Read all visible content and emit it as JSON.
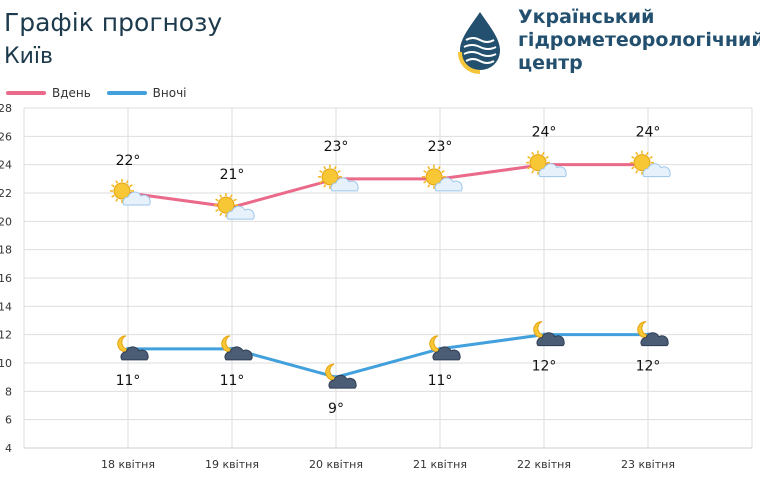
{
  "header": {
    "title": "Графік прогнозу",
    "city": "Київ"
  },
  "org": {
    "line1": "Український",
    "line2": "гідрометеорологічний",
    "line3": "центр"
  },
  "colors": {
    "day": "#ea6a8a",
    "night": "#42a0dc",
    "grid": "#dedede",
    "brand": "#23506e",
    "logo_yellow": "#f5c53a"
  },
  "chart_data": {
    "type": "line",
    "categories": [
      "18 квітня",
      "19 квітня",
      "20 квітня",
      "21 квітня",
      "22 квітня",
      "23 квітня"
    ],
    "series": [
      {
        "name": "Вдень",
        "values": [
          22,
          21,
          23,
          23,
          24,
          24
        ],
        "labels": [
          "22°",
          "21°",
          "23°",
          "23°",
          "24°",
          "24°"
        ],
        "icon": "sun-cloud-icon"
      },
      {
        "name": "Вночі",
        "values": [
          11,
          11,
          9,
          11,
          12,
          12
        ],
        "labels": [
          "11°",
          "11°",
          "9°",
          "11°",
          "12°",
          "12°"
        ],
        "icon": "moon-cloud-icon"
      }
    ],
    "ylim": [
      4,
      28
    ],
    "yticks": [
      "4",
      "6",
      "8",
      "10",
      "12",
      "14",
      "16",
      "18",
      "20",
      "22",
      "24",
      "26",
      "28"
    ],
    "grid": true,
    "legend_position": "top-left"
  }
}
